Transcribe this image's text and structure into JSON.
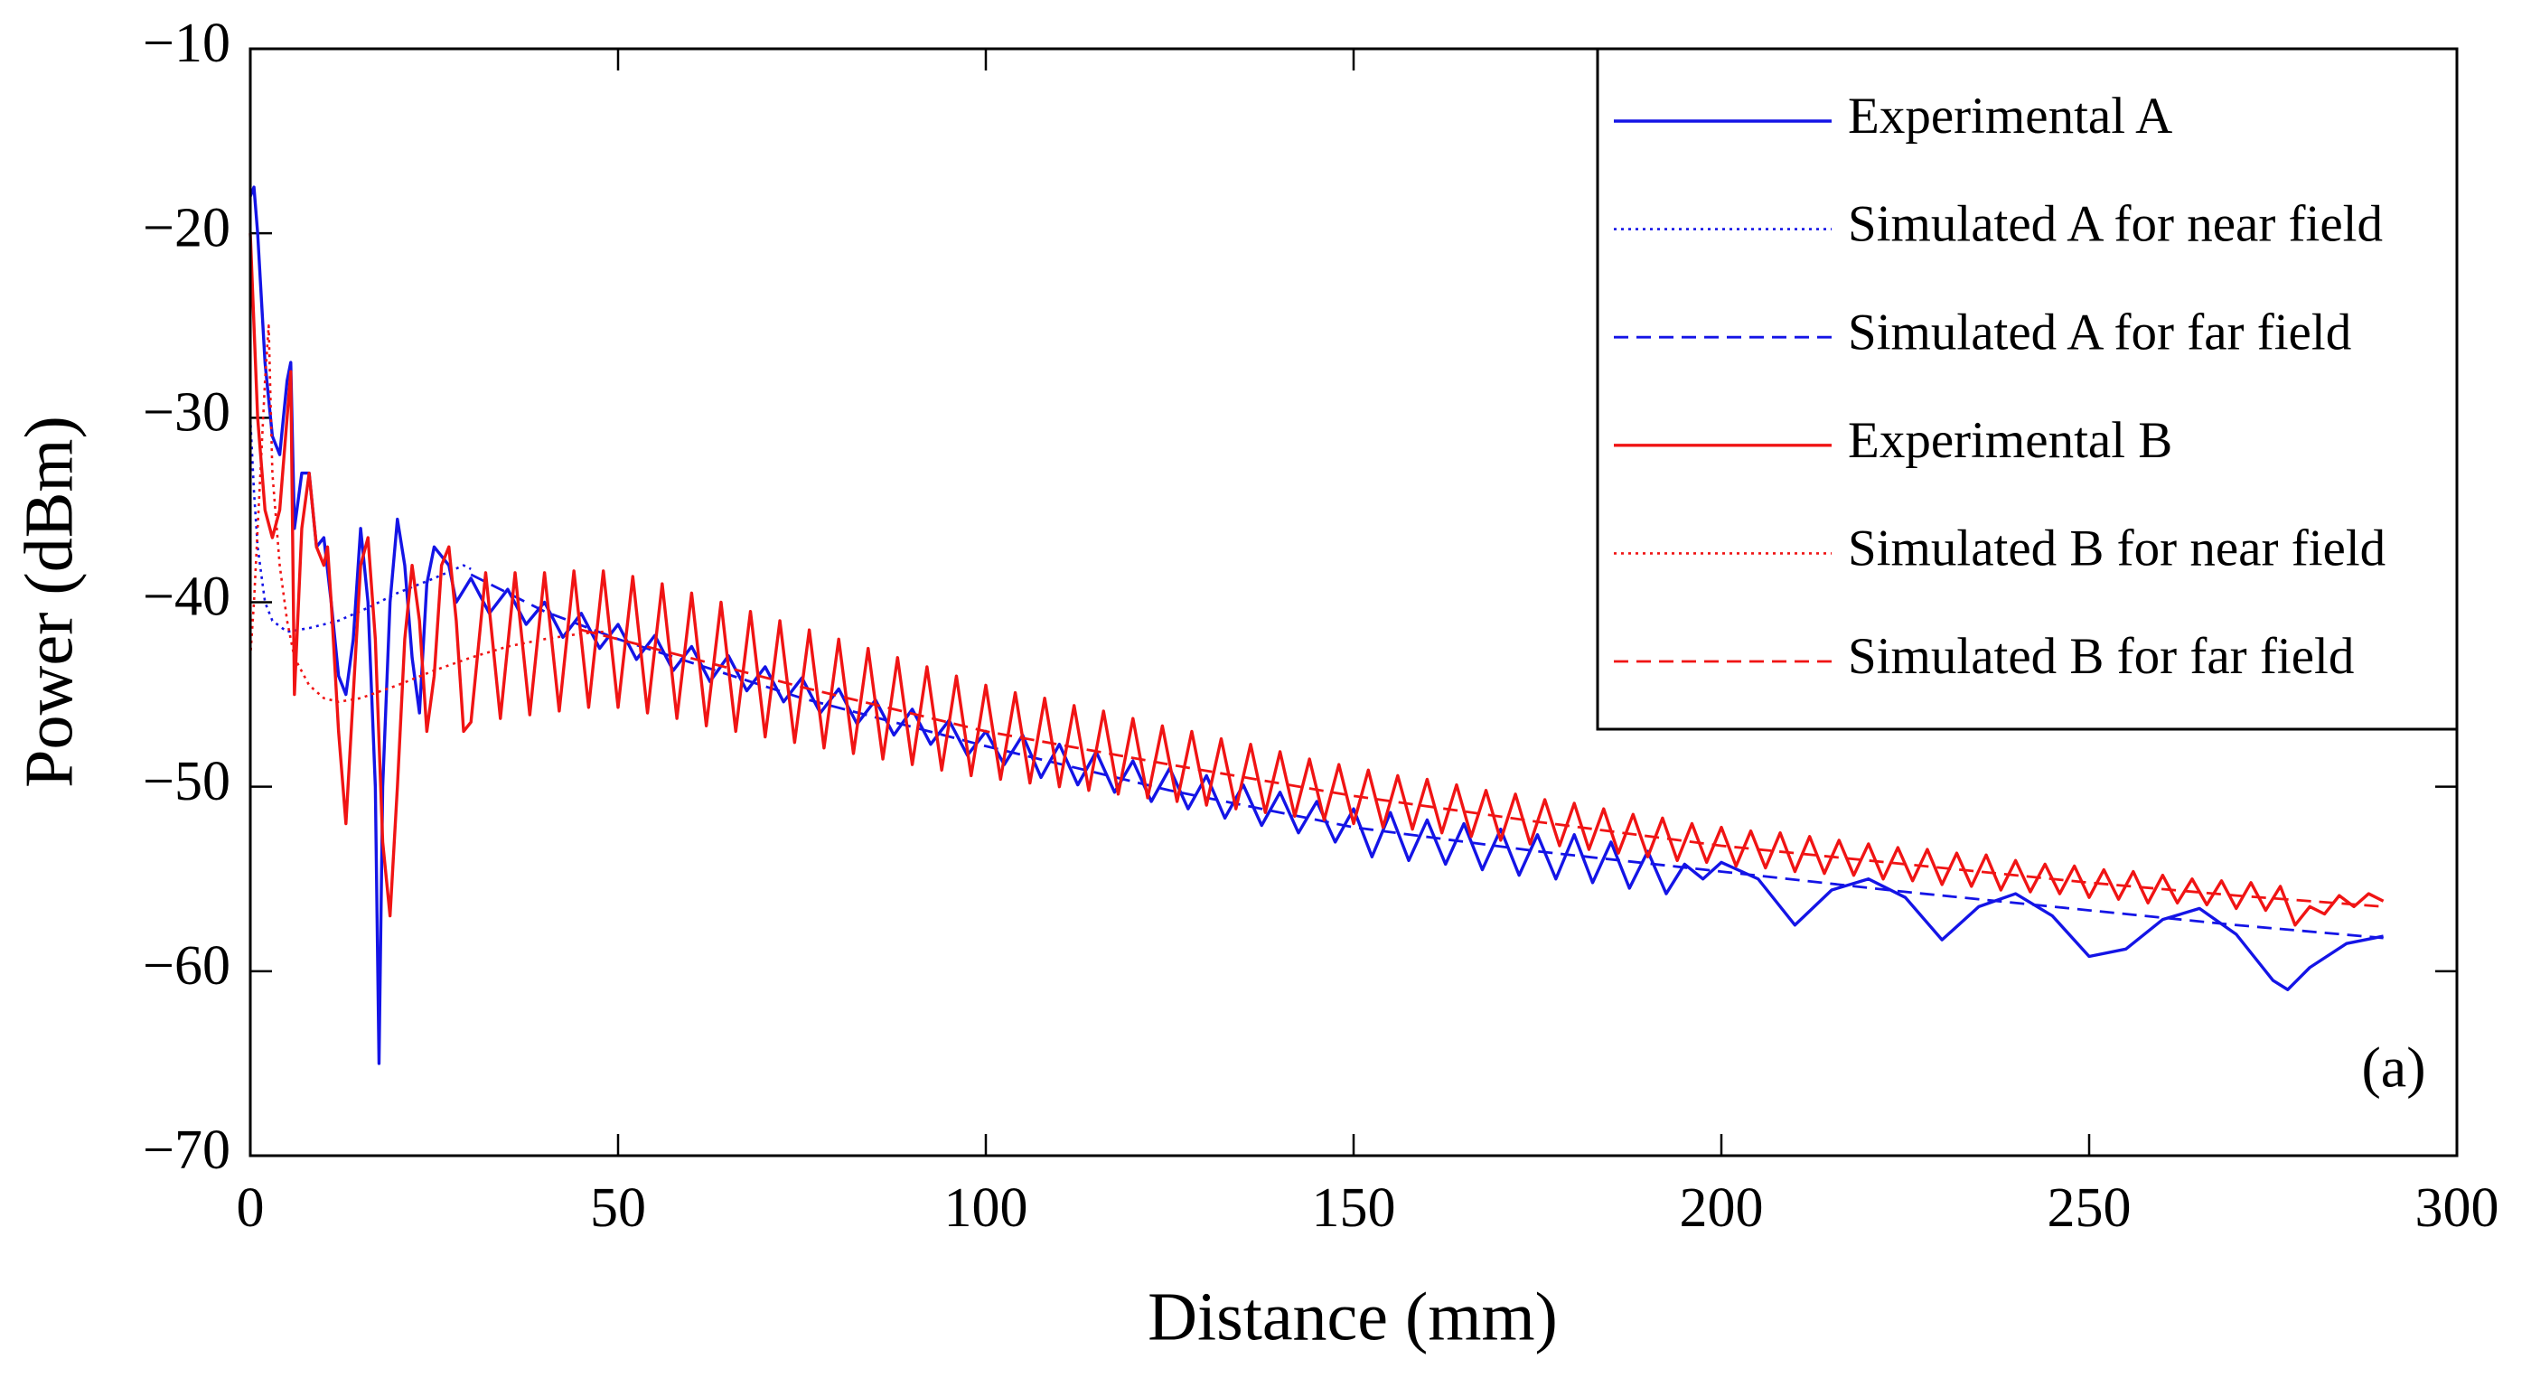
{
  "chart_data": {
    "type": "line",
    "xlabel": "Distance (mm)",
    "ylabel": "Power (dBm)",
    "annotation": "(a)",
    "xlim": [
      0,
      300
    ],
    "xticks": [
      0,
      50,
      100,
      150,
      200,
      250,
      300
    ],
    "ylim": [
      -70,
      -10
    ],
    "yticks": [
      {
        "value": -70,
        "label": "−70"
      },
      {
        "value": -60,
        "label": "−60"
      },
      {
        "value": -50,
        "label": "−50"
      },
      {
        "value": -40,
        "label": "−40"
      },
      {
        "value": -30,
        "label": "−30"
      },
      {
        "value": -20,
        "label": "−20"
      },
      {
        "value": -10,
        "label": "−10"
      }
    ],
    "legend": "upper right",
    "grid": false,
    "series": [
      {
        "name": "Experimental A",
        "color": "#1414e6",
        "dash": "solid",
        "x": [
          0,
          0.5,
          1,
          2,
          3,
          4,
          5,
          5.5,
          6,
          7,
          8,
          9,
          10,
          11,
          12,
          13,
          14,
          15,
          16,
          17,
          17.5,
          18,
          19,
          20,
          21,
          22,
          23,
          24,
          25,
          27,
          28,
          30,
          32.5,
          35,
          37.5,
          40,
          42.5,
          45,
          47.5,
          50,
          52.5,
          55,
          57.5,
          60,
          62.5,
          65,
          67.5,
          70,
          72.5,
          75,
          77.5,
          80,
          82.5,
          85,
          87.5,
          90,
          92.5,
          95,
          97.5,
          100,
          102.5,
          105,
          107.5,
          110,
          112.5,
          115,
          117.5,
          120,
          122.5,
          125,
          127.5,
          130,
          132.5,
          135,
          137.5,
          140,
          142.5,
          145,
          147.5,
          150,
          152.5,
          155,
          157.5,
          160,
          162.5,
          165,
          167.5,
          170,
          172.5,
          175,
          177.5,
          180,
          182.5,
          185,
          187.5,
          190,
          192.5,
          195,
          197.5,
          200,
          205,
          210,
          215,
          220,
          225,
          230,
          235,
          240,
          245,
          250,
          255,
          260,
          265,
          270,
          275,
          277,
          280,
          285,
          290
        ],
        "values": [
          -18,
          -17.5,
          -20,
          -27,
          -31,
          -32,
          -28,
          -27,
          -36,
          -33,
          -33,
          -37,
          -36.5,
          -40,
          -44,
          -45,
          -42,
          -36,
          -40,
          -50,
          -65,
          -50,
          -40,
          -35.5,
          -38,
          -43,
          -46,
          -39,
          -37,
          -38,
          -40,
          -38.7,
          -40.6,
          -39.3,
          -41.2,
          -40.0,
          -41.9,
          -40.6,
          -42.5,
          -41.2,
          -43.1,
          -41.8,
          -43.7,
          -42.4,
          -44.3,
          -42.9,
          -44.8,
          -43.5,
          -45.4,
          -44.1,
          -46.0,
          -44.7,
          -46.6,
          -45.3,
          -47.2,
          -45.8,
          -47.7,
          -46.4,
          -48.3,
          -47.0,
          -48.8,
          -47.2,
          -49.5,
          -47.7,
          -49.9,
          -48.1,
          -50.3,
          -48.6,
          -50.8,
          -49.0,
          -51.2,
          -49.4,
          -51.7,
          -49.9,
          -52.1,
          -50.3,
          -52.5,
          -50.8,
          -53.0,
          -51.2,
          -53.8,
          -51.4,
          -54.0,
          -51.8,
          -54.2,
          -52.0,
          -54.5,
          -52.3,
          -54.8,
          -52.6,
          -55.0,
          -52.6,
          -55.2,
          -53.0,
          -55.5,
          -53.5,
          -55.8,
          -54.2,
          -55.0,
          -54.1,
          -55.0,
          -57.5,
          -55.6,
          -55.0,
          -56.0,
          -58.3,
          -56.5,
          -55.8,
          -57.0,
          -59.2,
          -58.8,
          -57.2,
          -56.6,
          -58.0,
          -60.5,
          -61.0,
          -59.8,
          -58.5,
          -58.1
        ]
      },
      {
        "name": "Simulated A for near field",
        "color": "#1414e6",
        "dash": "dotted",
        "x": [
          0,
          0.5,
          1,
          2,
          3,
          5,
          8,
          12,
          16,
          20,
          25,
          29,
          30
        ],
        "values": [
          -30,
          -34,
          -37,
          -40,
          -41,
          -41.6,
          -41.4,
          -41.0,
          -40.3,
          -39.5,
          -38.7,
          -38.0,
          -38.2
        ]
      },
      {
        "name": "Simulated A for far field",
        "color": "#1414e6",
        "dash": "dashed",
        "x": [
          30,
          40,
          50,
          75,
          100,
          125,
          150,
          175,
          200,
          225,
          250,
          270,
          290
        ],
        "values": [
          -38.5,
          -40.5,
          -42,
          -45.2,
          -47.8,
          -50.2,
          -52.2,
          -53.5,
          -54.6,
          -55.7,
          -56.7,
          -57.5,
          -58.2
        ]
      },
      {
        "name": "Experimental B",
        "color": "#f01414",
        "dash": "solid",
        "x": [
          0,
          1,
          2,
          3,
          4,
          5,
          5.5,
          6,
          7,
          8,
          9,
          10,
          10.5,
          11,
          12,
          13,
          14,
          15,
          16,
          17,
          18,
          19,
          20,
          21,
          22,
          23,
          24,
          25,
          26,
          27,
          28,
          29,
          30,
          32,
          34,
          36,
          38,
          40,
          42,
          44,
          46,
          48,
          50,
          52,
          54,
          56,
          58,
          60,
          62,
          64,
          66,
          68,
          70,
          72,
          74,
          76,
          78,
          80,
          82,
          84,
          86,
          88,
          90,
          92,
          94,
          96,
          98,
          100,
          102,
          104,
          106,
          108,
          110,
          112,
          114,
          116,
          118,
          120,
          122,
          124,
          126,
          128,
          130,
          132,
          134,
          136,
          138,
          140,
          142,
          144,
          146,
          148,
          150,
          152,
          154,
          156,
          158,
          160,
          162,
          164,
          166,
          168,
          170,
          172,
          174,
          176,
          178,
          180,
          182,
          184,
          186,
          188,
          190,
          192,
          194,
          196,
          198,
          200,
          202,
          204,
          206,
          208,
          210,
          212,
          214,
          216,
          218,
          220,
          222,
          224,
          226,
          228,
          230,
          232,
          234,
          236,
          238,
          240,
          242,
          244,
          246,
          248,
          250,
          252,
          254,
          256,
          258,
          260,
          262,
          264,
          266,
          268,
          270,
          272,
          274,
          276,
          278,
          280,
          282,
          284,
          286,
          288,
          290
        ],
        "values": [
          -20,
          -30,
          -35,
          -36.5,
          -35,
          -30,
          -27.5,
          -45,
          -36,
          -33,
          -37,
          -38,
          -37,
          -40,
          -47,
          -52,
          -45,
          -38,
          -36.5,
          -42,
          -53,
          -57,
          -50,
          -42,
          -38,
          -41,
          -47,
          -44,
          -38,
          -37,
          -41,
          -47,
          -46.5,
          -38.4,
          -46.3,
          -38.4,
          -46.1,
          -38.4,
          -45.9,
          -38.3,
          -45.7,
          -38.3,
          -45.7,
          -38.6,
          -46.0,
          -39.0,
          -46.3,
          -39.5,
          -46.7,
          -40.0,
          -47.0,
          -40.5,
          -47.3,
          -41.0,
          -47.6,
          -41.5,
          -47.9,
          -42.0,
          -48.2,
          -42.5,
          -48.5,
          -43.0,
          -48.8,
          -43.5,
          -49.1,
          -44.0,
          -49.4,
          -44.5,
          -49.6,
          -44.9,
          -49.8,
          -45.2,
          -50.0,
          -45.6,
          -50.2,
          -45.9,
          -50.4,
          -46.3,
          -50.6,
          -46.7,
          -50.8,
          -47.0,
          -51.0,
          -47.4,
          -51.2,
          -47.7,
          -51.4,
          -48.1,
          -51.6,
          -48.5,
          -51.8,
          -48.8,
          -52.0,
          -49.1,
          -52.2,
          -49.4,
          -52.3,
          -49.6,
          -52.5,
          -49.9,
          -52.7,
          -50.2,
          -52.9,
          -50.4,
          -53.1,
          -50.7,
          -53.2,
          -50.9,
          -53.4,
          -51.2,
          -53.6,
          -51.5,
          -53.8,
          -51.7,
          -54.0,
          -52.0,
          -54.1,
          -52.2,
          -54.3,
          -52.4,
          -54.4,
          -52.5,
          -54.6,
          -52.7,
          -54.7,
          -52.9,
          -54.8,
          -53.1,
          -55.0,
          -53.3,
          -55.1,
          -53.4,
          -55.3,
          -53.6,
          -55.4,
          -53.7,
          -55.6,
          -54.0,
          -55.7,
          -54.2,
          -55.8,
          -54.3,
          -56.0,
          -54.5,
          -56.1,
          -54.6,
          -56.3,
          -54.8,
          -56.3,
          -55.0,
          -56.4,
          -55.1,
          -56.6,
          -55.2,
          -56.7,
          -55.4,
          -57.5,
          -56.5,
          -56.9,
          -55.9,
          -56.5,
          -55.8,
          -56.2
        ]
      },
      {
        "name": "Simulated B for near field",
        "color": "#f01414",
        "dash": "dotted",
        "x": [
          0,
          0.5,
          1,
          1.5,
          2,
          2.5,
          3,
          4,
          5,
          6,
          8,
          10,
          12,
          15,
          20,
          25,
          30,
          35,
          40,
          45,
          48
        ],
        "values": [
          -43,
          -40,
          -36,
          -32,
          -28,
          -25,
          -33,
          -38,
          -41,
          -43,
          -44.5,
          -45.2,
          -45.4,
          -45.2,
          -44.5,
          -43.7,
          -43.0,
          -42.4,
          -42.0,
          -41.7,
          -41.6
        ]
      },
      {
        "name": "Simulated B for far field",
        "color": "#f01414",
        "dash": "dashed",
        "x": [
          45,
          50,
          75,
          100,
          125,
          150,
          175,
          200,
          225,
          250,
          270,
          290
        ],
        "values": [
          -41.5,
          -42,
          -44.6,
          -47,
          -48.8,
          -50.5,
          -51.9,
          -53.2,
          -54.2,
          -55.2,
          -55.9,
          -56.5
        ]
      }
    ]
  }
}
